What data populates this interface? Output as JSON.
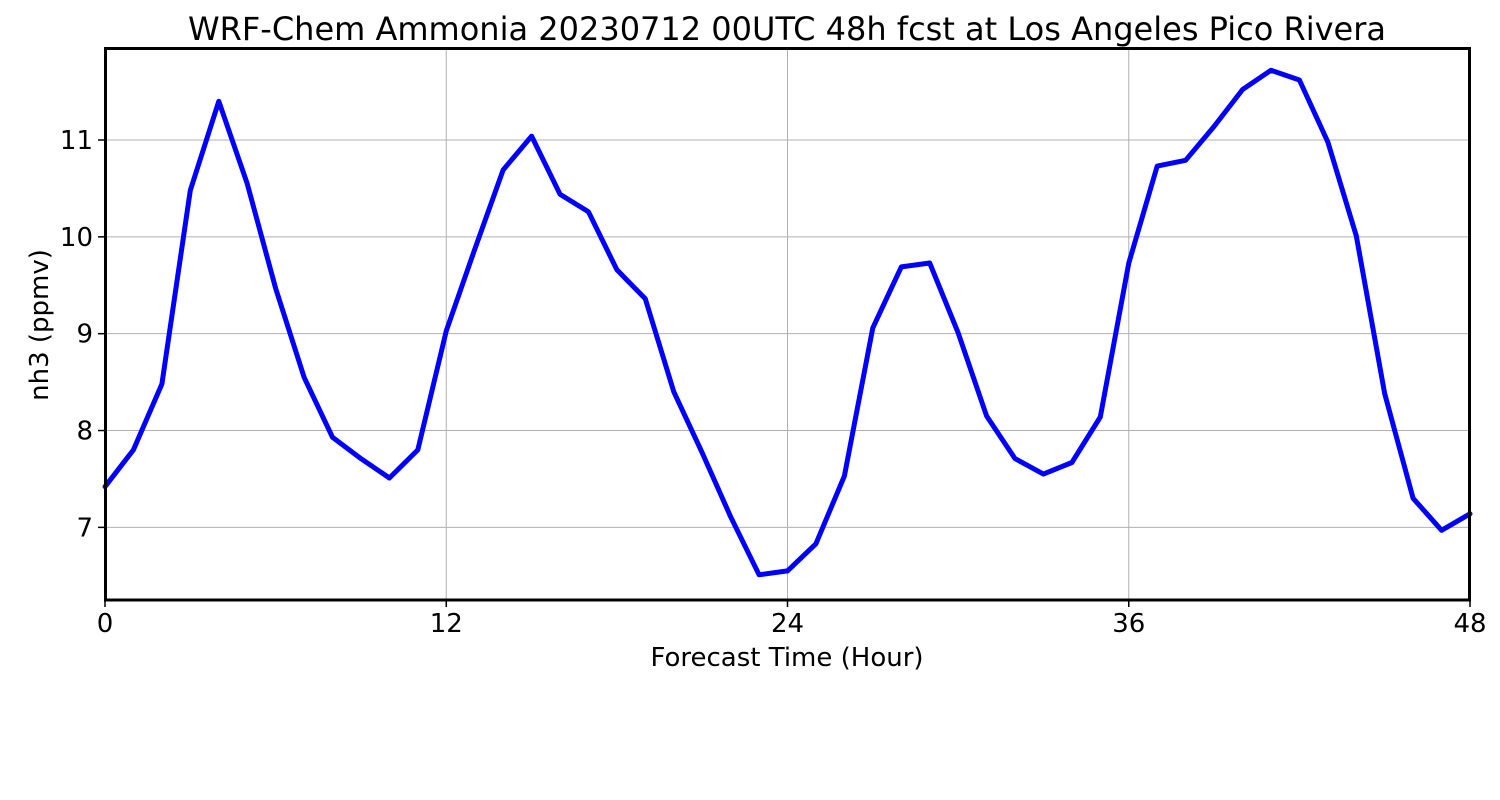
{
  "chart_data": {
    "type": "line",
    "title": "WRF-Chem Ammonia  20230712 00UTC 48h fcst at Los Angeles Pico Rivera",
    "xlabel": "Forecast Time (Hour)",
    "ylabel": "nh3  (ppmv)",
    "xlim": [
      0,
      48
    ],
    "ylim": [
      6.25,
      11.95
    ],
    "x_ticks": [
      0,
      12,
      24,
      36,
      48
    ],
    "y_ticks": [
      7,
      8,
      9,
      10,
      11
    ],
    "grid": true,
    "line_color": "#0000ff",
    "x": [
      0,
      1,
      2,
      3,
      4,
      5,
      6,
      7,
      8,
      9,
      10,
      11,
      12,
      13,
      14,
      15,
      16,
      17,
      18,
      19,
      20,
      21,
      22,
      23,
      24,
      25,
      26,
      27,
      28,
      29,
      30,
      31,
      32,
      33,
      34,
      35,
      36,
      37,
      38,
      39,
      40,
      41,
      42,
      43,
      44,
      45,
      46,
      47,
      48
    ],
    "series": [
      {
        "values": [
          7.42,
          7.8,
          8.48,
          10.48,
          11.4,
          10.55,
          9.47,
          8.55,
          7.93,
          7.71,
          7.51,
          7.8,
          9.03,
          9.87,
          10.69,
          11.04,
          10.44,
          10.26,
          9.66,
          9.36,
          8.4,
          7.77,
          7.11,
          6.51,
          6.55,
          6.83,
          7.53,
          9.06,
          9.69,
          9.73,
          9.01,
          8.15,
          7.71,
          7.55,
          7.67,
          8.14,
          9.73,
          10.73,
          10.79,
          11.14,
          11.52,
          11.72,
          11.62,
          10.98,
          10.01,
          8.38,
          7.3,
          6.97,
          7.14
        ]
      }
    ]
  }
}
